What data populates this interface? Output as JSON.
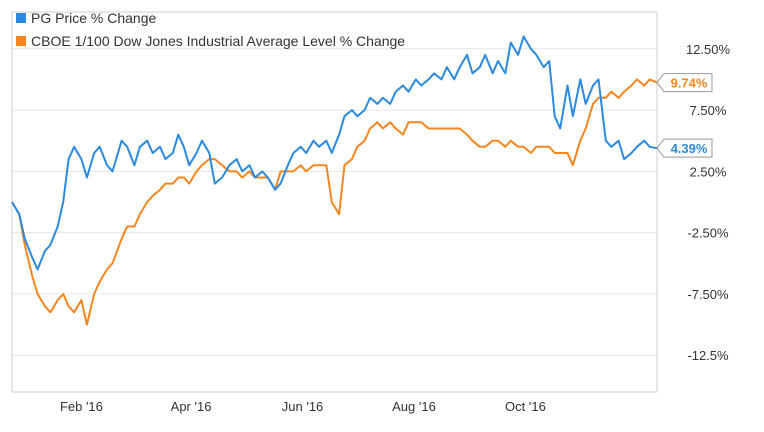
{
  "chart_data": {
    "type": "line",
    "title": "",
    "xlabel": "",
    "ylabel": "",
    "x_ticks": [
      "Feb '16",
      "Apr '16",
      "Jun '16",
      "Aug '16",
      "Oct '16"
    ],
    "y_ticks": [
      "12.50%",
      "7.50%",
      "2.50%",
      "-2.50%",
      "-7.50%",
      "-12.5%"
    ],
    "ylim": [
      -15.5,
      15.5
    ],
    "grid": true,
    "legend_position": "top-left",
    "series": [
      {
        "name": "PG Price % Change",
        "color": "#2b8ae0",
        "end_label": "4.39%",
        "points": [
          [
            "2016-01-01",
            0
          ],
          [
            "2016-01-05",
            -1
          ],
          [
            "2016-01-08",
            -3
          ],
          [
            "2016-01-12",
            -4.5
          ],
          [
            "2016-01-15",
            -5.5
          ],
          [
            "2016-01-19",
            -4
          ],
          [
            "2016-01-22",
            -3.5
          ],
          [
            "2016-01-26",
            -2
          ],
          [
            "2016-01-29",
            0
          ],
          [
            "2016-02-01",
            3.5
          ],
          [
            "2016-02-04",
            4.5
          ],
          [
            "2016-02-08",
            3.5
          ],
          [
            "2016-02-11",
            2
          ],
          [
            "2016-02-15",
            4
          ],
          [
            "2016-02-18",
            4.5
          ],
          [
            "2016-02-22",
            3
          ],
          [
            "2016-02-25",
            2.5
          ],
          [
            "2016-03-01",
            5
          ],
          [
            "2016-03-04",
            4.5
          ],
          [
            "2016-03-08",
            3
          ],
          [
            "2016-03-11",
            4.5
          ],
          [
            "2016-03-15",
            5
          ],
          [
            "2016-03-18",
            4
          ],
          [
            "2016-03-22",
            4.5
          ],
          [
            "2016-03-25",
            3.5
          ],
          [
            "2016-03-29",
            4
          ],
          [
            "2016-04-01",
            5.5
          ],
          [
            "2016-04-04",
            4.5
          ],
          [
            "2016-04-07",
            3
          ],
          [
            "2016-04-11",
            4
          ],
          [
            "2016-04-14",
            5
          ],
          [
            "2016-04-18",
            4
          ],
          [
            "2016-04-21",
            1.5
          ],
          [
            "2016-04-25",
            2
          ],
          [
            "2016-04-29",
            3
          ],
          [
            "2016-05-03",
            3.5
          ],
          [
            "2016-05-06",
            2.5
          ],
          [
            "2016-05-10",
            3
          ],
          [
            "2016-05-13",
            2
          ],
          [
            "2016-05-17",
            2.5
          ],
          [
            "2016-05-20",
            2
          ],
          [
            "2016-05-24",
            1
          ],
          [
            "2016-05-27",
            1.5
          ],
          [
            "2016-05-31",
            3
          ],
          [
            "2016-06-03",
            4
          ],
          [
            "2016-06-07",
            4.5
          ],
          [
            "2016-06-10",
            4
          ],
          [
            "2016-06-14",
            5
          ],
          [
            "2016-06-17",
            4.5
          ],
          [
            "2016-06-21",
            5
          ],
          [
            "2016-06-24",
            4
          ],
          [
            "2016-06-28",
            5.5
          ],
          [
            "2016-07-01",
            7
          ],
          [
            "2016-07-05",
            7.5
          ],
          [
            "2016-07-08",
            7
          ],
          [
            "2016-07-12",
            7.5
          ],
          [
            "2016-07-15",
            8.5
          ],
          [
            "2016-07-19",
            8
          ],
          [
            "2016-07-22",
            8.5
          ],
          [
            "2016-07-26",
            8
          ],
          [
            "2016-07-29",
            9
          ],
          [
            "2016-08-02",
            9.5
          ],
          [
            "2016-08-05",
            9
          ],
          [
            "2016-08-09",
            10
          ],
          [
            "2016-08-12",
            9.5
          ],
          [
            "2016-08-16",
            10
          ],
          [
            "2016-08-19",
            10.5
          ],
          [
            "2016-08-23",
            10
          ],
          [
            "2016-08-26",
            11
          ],
          [
            "2016-08-30",
            10
          ],
          [
            "2016-09-02",
            11
          ],
          [
            "2016-09-06",
            12
          ],
          [
            "2016-09-09",
            10.5
          ],
          [
            "2016-09-13",
            11
          ],
          [
            "2016-09-16",
            12
          ],
          [
            "2016-09-20",
            10.5
          ],
          [
            "2016-09-23",
            11.5
          ],
          [
            "2016-09-27",
            10.5
          ],
          [
            "2016-09-30",
            13
          ],
          [
            "2016-10-04",
            12
          ],
          [
            "2016-10-07",
            13.5
          ],
          [
            "2016-10-11",
            12.5
          ],
          [
            "2016-10-14",
            12
          ],
          [
            "2016-10-18",
            11
          ],
          [
            "2016-10-21",
            11.5
          ],
          [
            "2016-10-24",
            7
          ],
          [
            "2016-10-27",
            6
          ],
          [
            "2016-10-31",
            9.5
          ],
          [
            "2016-11-03",
            7
          ],
          [
            "2016-11-07",
            10
          ],
          [
            "2016-11-10",
            8
          ],
          [
            "2016-11-14",
            9.5
          ],
          [
            "2016-11-17",
            10
          ],
          [
            "2016-11-21",
            5
          ],
          [
            "2016-11-24",
            4.5
          ],
          [
            "2016-11-28",
            5
          ],
          [
            "2016-12-01",
            3.5
          ],
          [
            "2016-12-05",
            4
          ],
          [
            "2016-12-08",
            4.5
          ],
          [
            "2016-12-12",
            5
          ],
          [
            "2016-12-15",
            4.5
          ],
          [
            "2016-12-19",
            4.39
          ]
        ]
      },
      {
        "name": "CBOE 1/100 Dow Jones Industrial Average Level % Change",
        "color": "#f5861f",
        "end_label": "9.74%",
        "points": [
          [
            "2016-01-01",
            0
          ],
          [
            "2016-01-05",
            -1
          ],
          [
            "2016-01-08",
            -3.5
          ],
          [
            "2016-01-12",
            -6
          ],
          [
            "2016-01-15",
            -7.5
          ],
          [
            "2016-01-19",
            -8.5
          ],
          [
            "2016-01-22",
            -9
          ],
          [
            "2016-01-26",
            -8
          ],
          [
            "2016-01-29",
            -7.5
          ],
          [
            "2016-02-01",
            -8.5
          ],
          [
            "2016-02-04",
            -9
          ],
          [
            "2016-02-08",
            -8
          ],
          [
            "2016-02-11",
            -10
          ],
          [
            "2016-02-15",
            -7.5
          ],
          [
            "2016-02-18",
            -6.5
          ],
          [
            "2016-02-22",
            -5.5
          ],
          [
            "2016-02-25",
            -5
          ],
          [
            "2016-03-01",
            -3
          ],
          [
            "2016-03-04",
            -2
          ],
          [
            "2016-03-08",
            -2
          ],
          [
            "2016-03-11",
            -1
          ],
          [
            "2016-03-15",
            0
          ],
          [
            "2016-03-18",
            0.5
          ],
          [
            "2016-03-22",
            1
          ],
          [
            "2016-03-25",
            1.5
          ],
          [
            "2016-03-29",
            1.5
          ],
          [
            "2016-04-01",
            2
          ],
          [
            "2016-04-04",
            2
          ],
          [
            "2016-04-07",
            1.5
          ],
          [
            "2016-04-11",
            2.5
          ],
          [
            "2016-04-14",
            3
          ],
          [
            "2016-04-18",
            3.5
          ],
          [
            "2016-04-21",
            3.5
          ],
          [
            "2016-04-25",
            3
          ],
          [
            "2016-04-29",
            2.5
          ],
          [
            "2016-05-03",
            2.5
          ],
          [
            "2016-05-06",
            2
          ],
          [
            "2016-05-10",
            2.5
          ],
          [
            "2016-05-13",
            2
          ],
          [
            "2016-05-17",
            2
          ],
          [
            "2016-05-20",
            2
          ],
          [
            "2016-05-24",
            1
          ],
          [
            "2016-05-27",
            2.5
          ],
          [
            "2016-05-31",
            2.5
          ],
          [
            "2016-06-03",
            2.5
          ],
          [
            "2016-06-07",
            3
          ],
          [
            "2016-06-10",
            2.5
          ],
          [
            "2016-06-14",
            3
          ],
          [
            "2016-06-17",
            3
          ],
          [
            "2016-06-21",
            3
          ],
          [
            "2016-06-24",
            0
          ],
          [
            "2016-06-28",
            -1
          ],
          [
            "2016-07-01",
            3
          ],
          [
            "2016-07-05",
            3.5
          ],
          [
            "2016-07-08",
            4.5
          ],
          [
            "2016-07-12",
            5
          ],
          [
            "2016-07-15",
            6
          ],
          [
            "2016-07-19",
            6.5
          ],
          [
            "2016-07-22",
            6
          ],
          [
            "2016-07-26",
            6.5
          ],
          [
            "2016-07-29",
            6
          ],
          [
            "2016-08-02",
            5.5
          ],
          [
            "2016-08-05",
            6.5
          ],
          [
            "2016-08-09",
            6.5
          ],
          [
            "2016-08-12",
            6.5
          ],
          [
            "2016-08-16",
            6
          ],
          [
            "2016-08-19",
            6
          ],
          [
            "2016-08-23",
            6
          ],
          [
            "2016-08-26",
            6
          ],
          [
            "2016-08-30",
            6
          ],
          [
            "2016-09-02",
            6
          ],
          [
            "2016-09-06",
            5.5
          ],
          [
            "2016-09-09",
            5
          ],
          [
            "2016-09-13",
            4.5
          ],
          [
            "2016-09-16",
            4.5
          ],
          [
            "2016-09-20",
            5
          ],
          [
            "2016-09-23",
            5
          ],
          [
            "2016-09-27",
            4.5
          ],
          [
            "2016-09-30",
            5
          ],
          [
            "2016-10-04",
            4.5
          ],
          [
            "2016-10-07",
            4.5
          ],
          [
            "2016-10-11",
            4
          ],
          [
            "2016-10-14",
            4.5
          ],
          [
            "2016-10-18",
            4.5
          ],
          [
            "2016-10-21",
            4.5
          ],
          [
            "2016-10-24",
            4
          ],
          [
            "2016-10-27",
            4
          ],
          [
            "2016-10-31",
            4
          ],
          [
            "2016-11-03",
            3
          ],
          [
            "2016-11-07",
            5
          ],
          [
            "2016-11-10",
            6
          ],
          [
            "2016-11-14",
            8
          ],
          [
            "2016-11-17",
            8.5
          ],
          [
            "2016-11-21",
            8.5
          ],
          [
            "2016-11-24",
            9
          ],
          [
            "2016-11-28",
            8.5
          ],
          [
            "2016-12-01",
            9
          ],
          [
            "2016-12-05",
            9.5
          ],
          [
            "2016-12-08",
            10
          ],
          [
            "2016-12-12",
            9.5
          ],
          [
            "2016-12-15",
            10
          ],
          [
            "2016-12-19",
            9.74
          ]
        ]
      }
    ]
  }
}
